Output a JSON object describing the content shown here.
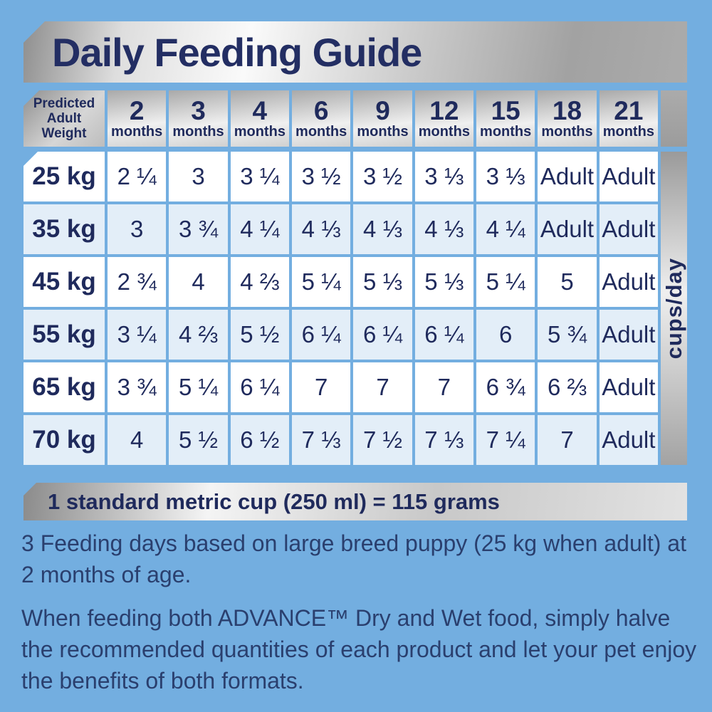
{
  "title": "Daily Feeding Guide",
  "chart_data": {
    "type": "table",
    "title": "Daily Feeding Guide",
    "corner_header": "Predicted Adult Weight",
    "corner_lines": [
      "Predicted",
      "Adult",
      "Weight"
    ],
    "unit_label": "cups/day",
    "columns": [
      {
        "num": "2",
        "unit": "months"
      },
      {
        "num": "3",
        "unit": "months"
      },
      {
        "num": "4",
        "unit": "months"
      },
      {
        "num": "6",
        "unit": "months"
      },
      {
        "num": "9",
        "unit": "months"
      },
      {
        "num": "12",
        "unit": "months"
      },
      {
        "num": "15",
        "unit": "months"
      },
      {
        "num": "18",
        "unit": "months"
      },
      {
        "num": "21",
        "unit": "months"
      }
    ],
    "rows": [
      {
        "weight": "25 kg",
        "values": [
          "2 ¼",
          "3",
          "3 ¼",
          "3 ½",
          "3 ½",
          "3 ⅓",
          "3 ⅓",
          "Adult",
          "Adult"
        ]
      },
      {
        "weight": "35 kg",
        "values": [
          "3",
          "3 ¾",
          "4 ¼",
          "4 ⅓",
          "4 ⅓",
          "4 ⅓",
          "4 ¼",
          "Adult",
          "Adult"
        ]
      },
      {
        "weight": "45 kg",
        "values": [
          "2 ¾",
          "4",
          "4 ⅔",
          "5 ¼",
          "5 ⅓",
          "5 ⅓",
          "5 ¼",
          "5",
          "Adult"
        ]
      },
      {
        "weight": "55 kg",
        "values": [
          "3 ¼",
          "4 ⅔",
          "5 ½",
          "6 ¼",
          "6 ¼",
          "6 ¼",
          "6",
          "5 ¾",
          "Adult"
        ]
      },
      {
        "weight": "65 kg",
        "values": [
          "3 ¾",
          "5 ¼",
          "6 ¼",
          "7",
          "7",
          "7",
          "6 ¾",
          "6 ⅔",
          "Adult"
        ]
      },
      {
        "weight": "70 kg",
        "values": [
          "4",
          "5 ½",
          "6 ½",
          "7 ⅓",
          "7 ½",
          "7 ⅓",
          "7 ¼",
          "7",
          "Adult"
        ]
      }
    ]
  },
  "cup_note": "1 standard metric cup (250 ml) = 115 grams",
  "notes": [
    "3 Feeding days based on large breed puppy (25 kg when adult) at 2 months of age.",
    "When feeding both ADVANCE™ Dry and Wet food, simply halve the recommended quantities of each product and let your pet enjoy the benefits of both formats."
  ],
  "colors": {
    "background": "#73AEE0",
    "navy_text": "#1F2A5C",
    "note_text": "#2A3F6E",
    "row_white": "#FFFFFF",
    "row_alt_blue": "#E3EEF8",
    "silver_dark": "#8E8E8E",
    "silver_light": "#FAFAFA"
  }
}
